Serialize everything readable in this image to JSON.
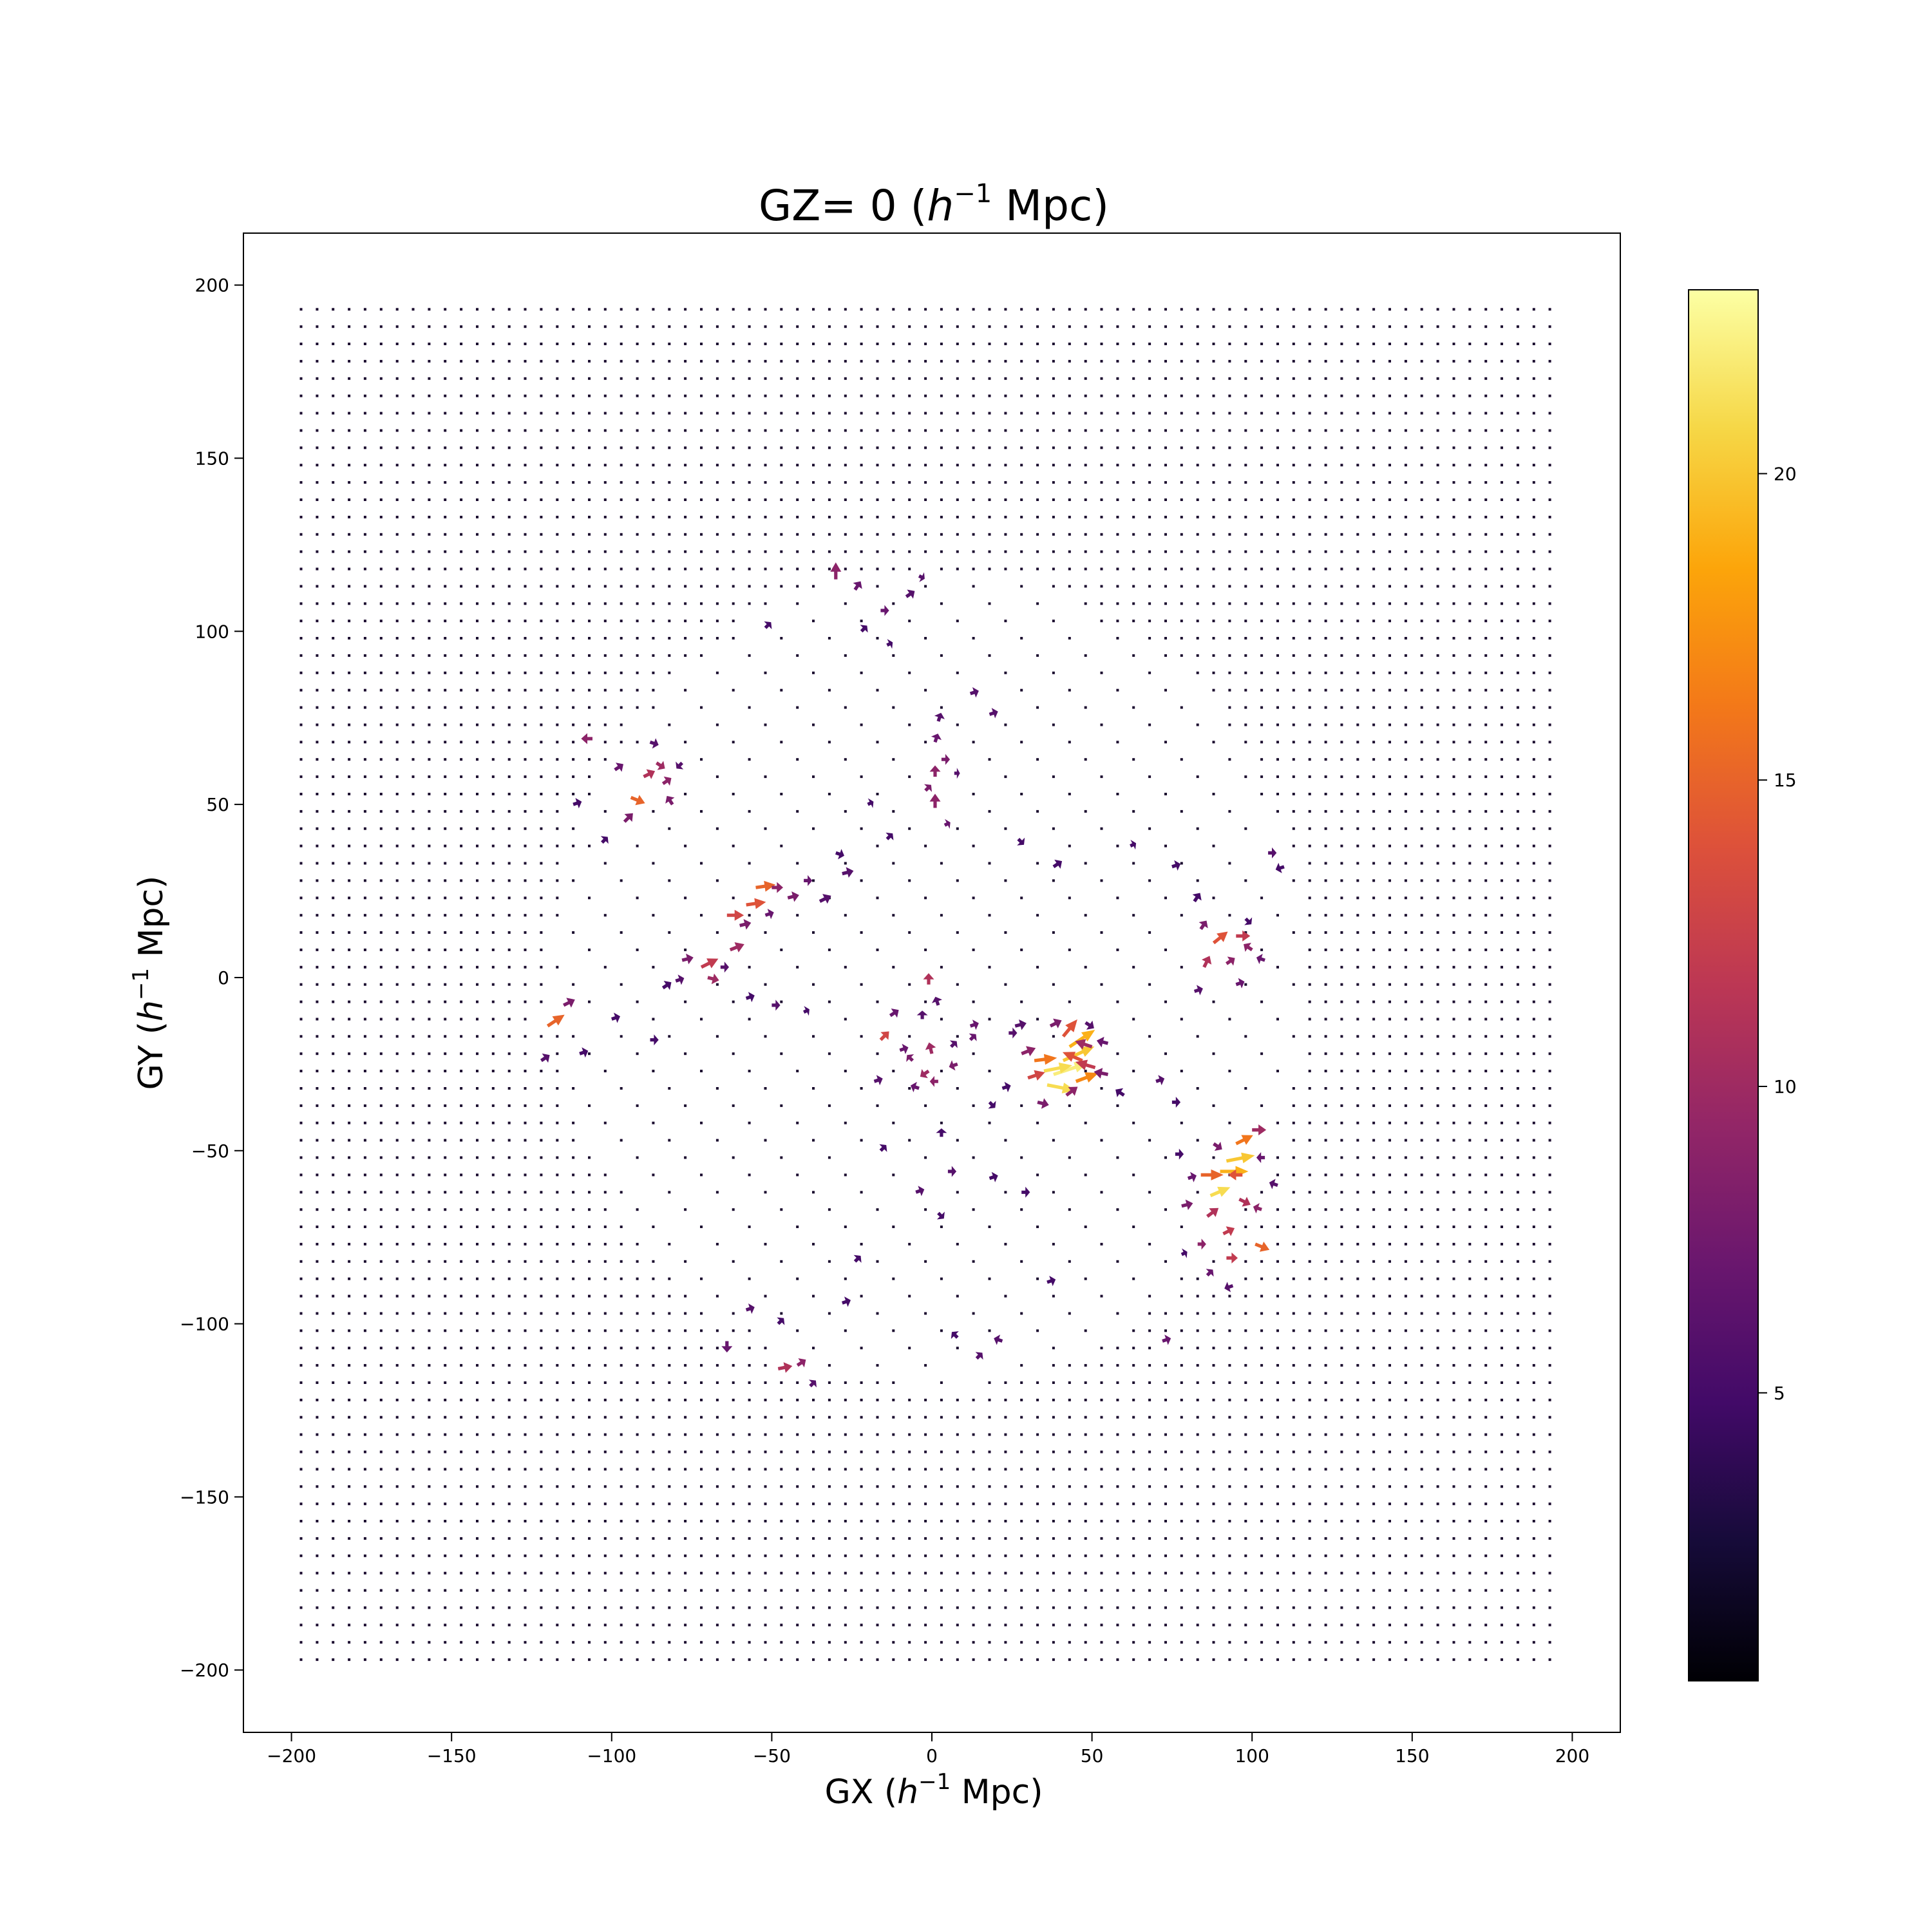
{
  "chart_data": {
    "type": "quiver",
    "title": "GZ= 0 ($h^{-1}$ Mpc)",
    "title_parts": {
      "prefix": "GZ= 0 (",
      "var": "h",
      "sup": "−1",
      "suffix": " Mpc)"
    },
    "xlabel": "GX ($h^{-1}$ Mpc)",
    "xlabel_parts": {
      "prefix": "GX (",
      "var": "h",
      "sup": "−1",
      "suffix": " Mpc)"
    },
    "ylabel": "GY ($h^{-1}$ Mpc)",
    "ylabel_parts": {
      "prefix": "GY (",
      "var": "h",
      "sup": "−1",
      "suffix": " Mpc)"
    },
    "xlim": [
      -215,
      215
    ],
    "ylim": [
      -218,
      215
    ],
    "xticks": [
      -200,
      -150,
      -100,
      -50,
      0,
      50,
      100,
      150,
      200
    ],
    "xtick_labels": [
      "−200",
      "−150",
      "−100",
      "−50",
      "0",
      "50",
      "100",
      "150",
      "200"
    ],
    "yticks": [
      -200,
      -150,
      -100,
      -50,
      0,
      50,
      100,
      150,
      200
    ],
    "ytick_labels": [
      "−200",
      "−150",
      "−100",
      "−50",
      "0",
      "50",
      "100",
      "150",
      "200"
    ],
    "grid": false,
    "grid_range": [
      -197,
      197
    ],
    "grid_spacing": 5,
    "colormap": "inferno",
    "colorbar": {
      "range": [
        0.3,
        23
      ],
      "ticks": [
        5,
        10,
        15,
        20
      ],
      "tick_labels": [
        "5",
        "10",
        "15",
        "20"
      ]
    },
    "vectors": [
      {
        "x": 38,
        "y": -28,
        "u": 12,
        "v": 4,
        "mag": 22
      },
      {
        "x": 35,
        "y": -27,
        "u": 10,
        "v": 2,
        "mag": 21
      },
      {
        "x": 41,
        "y": -24,
        "u": 11,
        "v": 5,
        "mag": 20
      },
      {
        "x": 43,
        "y": -20,
        "u": 9,
        "v": 6,
        "mag": 19
      },
      {
        "x": 36,
        "y": -31,
        "u": 10,
        "v": -2,
        "mag": 21
      },
      {
        "x": 45,
        "y": -30,
        "u": 8,
        "v": 3,
        "mag": 17
      },
      {
        "x": 32,
        "y": -24,
        "u": 8,
        "v": 1,
        "mag": 16
      },
      {
        "x": 47,
        "y": -24,
        "u": -7,
        "v": 3,
        "mag": 14
      },
      {
        "x": 51,
        "y": -26,
        "u": -7,
        "v": 2,
        "mag": 12
      },
      {
        "x": 41,
        "y": -17,
        "u": 5,
        "v": 6,
        "mag": 14
      },
      {
        "x": 30,
        "y": -29,
        "u": 6,
        "v": 2,
        "mag": 13
      },
      {
        "x": 50,
        "y": -20,
        "u": -6,
        "v": 2,
        "mag": 10
      },
      {
        "x": 42,
        "y": -34,
        "u": 4,
        "v": 3,
        "mag": 9
      },
      {
        "x": 28,
        "y": -22,
        "u": 5,
        "v": 2,
        "mag": 9
      },
      {
        "x": 33,
        "y": -36,
        "u": 4,
        "v": -1,
        "mag": 8
      },
      {
        "x": 55,
        "y": -28,
        "u": -5,
        "v": 1,
        "mag": 8
      },
      {
        "x": 37,
        "y": -14,
        "u": 4,
        "v": 2,
        "mag": 8
      },
      {
        "x": 55,
        "y": -19,
        "u": -4,
        "v": 1,
        "mag": 7
      },
      {
        "x": 26,
        "y": -14,
        "u": 4,
        "v": 1,
        "mag": 6
      },
      {
        "x": 48,
        "y": -13,
        "u": 3,
        "v": -2,
        "mag": 6
      },
      {
        "x": 60,
        "y": -34,
        "u": -3,
        "v": 2,
        "mag": 5
      },
      {
        "x": 22,
        "y": -32,
        "u": 3,
        "v": 1,
        "mag": 5
      },
      {
        "x": 92,
        "y": -53,
        "u": 10,
        "v": 2,
        "mag": 20
      },
      {
        "x": 90,
        "y": -56,
        "u": 10,
        "v": 0,
        "mag": 19
      },
      {
        "x": 87,
        "y": -63,
        "u": 7,
        "v": 3,
        "mag": 21
      },
      {
        "x": 95,
        "y": -48,
        "u": 6,
        "v": 3,
        "mag": 16
      },
      {
        "x": 84,
        "y": -57,
        "u": 8,
        "v": 0,
        "mag": 15
      },
      {
        "x": 97,
        "y": -57,
        "u": -5,
        "v": 0,
        "mag": 14
      },
      {
        "x": 101,
        "y": -77,
        "u": 5,
        "v": -2,
        "mag": 15
      },
      {
        "x": 91,
        "y": -74,
        "u": 4,
        "v": 2,
        "mag": 12
      },
      {
        "x": 86,
        "y": -69,
        "u": 4,
        "v": 3,
        "mag": 11
      },
      {
        "x": 96,
        "y": -64,
        "u": 4,
        "v": -2,
        "mag": 11
      },
      {
        "x": 100,
        "y": -44,
        "u": 5,
        "v": 0,
        "mag": 10
      },
      {
        "x": 92,
        "y": -81,
        "u": 4,
        "v": 0,
        "mag": 12
      },
      {
        "x": 83,
        "y": -77,
        "u": 3,
        "v": 0,
        "mag": 9
      },
      {
        "x": 103,
        "y": -67,
        "u": -3,
        "v": 1,
        "mag": 9
      },
      {
        "x": 78,
        "y": -66,
        "u": 4,
        "v": 1,
        "mag": 8
      },
      {
        "x": 80,
        "y": -58,
        "u": 3,
        "v": 1,
        "mag": 7
      },
      {
        "x": 88,
        "y": -48,
        "u": 3,
        "v": -2,
        "mag": 8
      },
      {
        "x": 104,
        "y": -52,
        "u": -3,
        "v": 0,
        "mag": 7
      },
      {
        "x": 86,
        "y": -86,
        "u": 2,
        "v": 2,
        "mag": 7
      },
      {
        "x": 94,
        "y": -89,
        "u": -3,
        "v": -1,
        "mag": 6
      },
      {
        "x": 78,
        "y": -80,
        "u": 2,
        "v": 1,
        "mag": 5
      },
      {
        "x": 108,
        "y": -60,
        "u": -3,
        "v": 1,
        "mag": 6
      },
      {
        "x": 76,
        "y": -51,
        "u": 3,
        "v": 0,
        "mag": 5
      },
      {
        "x": 88,
        "y": 10,
        "u": 5,
        "v": 4,
        "mag": 14
      },
      {
        "x": 95,
        "y": 12,
        "u": 5,
        "v": 0,
        "mag": 12
      },
      {
        "x": 85,
        "y": 3,
        "u": 2,
        "v": 4,
        "mag": 11
      },
      {
        "x": 100,
        "y": 8,
        "u": -3,
        "v": 2,
        "mag": 9
      },
      {
        "x": 92,
        "y": 4,
        "u": 3,
        "v": 2,
        "mag": 9
      },
      {
        "x": 84,
        "y": 14,
        "u": 2,
        "v": 3,
        "mag": 8
      },
      {
        "x": 104,
        "y": 5,
        "u": -3,
        "v": 1,
        "mag": 7
      },
      {
        "x": 95,
        "y": -2,
        "u": 3,
        "v": 1,
        "mag": 7
      },
      {
        "x": 82,
        "y": -4,
        "u": 3,
        "v": 1,
        "mag": 6
      },
      {
        "x": 98,
        "y": 17,
        "u": 2,
        "v": -2,
        "mag": 5
      },
      {
        "x": -55,
        "y": 26,
        "u": 7,
        "v": 1,
        "mag": 15
      },
      {
        "x": -58,
        "y": 21,
        "u": 7,
        "v": 1,
        "mag": 14
      },
      {
        "x": -64,
        "y": 18,
        "u": 6,
        "v": 0,
        "mag": 13
      },
      {
        "x": -72,
        "y": 3,
        "u": 6,
        "v": 3,
        "mag": 12
      },
      {
        "x": -63,
        "y": 8,
        "u": 5,
        "v": 2,
        "mag": 10
      },
      {
        "x": -70,
        "y": 0,
        "u": 4,
        "v": -1,
        "mag": 10
      },
      {
        "x": -50,
        "y": 26,
        "u": 4,
        "v": 0,
        "mag": 9
      },
      {
        "x": -60,
        "y": 15,
        "u": 4,
        "v": 1,
        "mag": 8
      },
      {
        "x": -45,
        "y": 23,
        "u": 4,
        "v": 1,
        "mag": 8
      },
      {
        "x": -78,
        "y": 5,
        "u": 4,
        "v": 1,
        "mag": 8
      },
      {
        "x": -52,
        "y": 18,
        "u": 3,
        "v": 1,
        "mag": 7
      },
      {
        "x": -40,
        "y": 28,
        "u": 3,
        "v": 0,
        "mag": 7
      },
      {
        "x": -35,
        "y": 22,
        "u": 4,
        "v": 2,
        "mag": 6
      },
      {
        "x": -28,
        "y": 30,
        "u": 4,
        "v": 1,
        "mag": 6
      },
      {
        "x": -66,
        "y": 3,
        "u": 3,
        "v": 0,
        "mag": 6
      },
      {
        "x": -80,
        "y": -1,
        "u": 3,
        "v": 1,
        "mag": 6
      },
      {
        "x": -84,
        "y": -3,
        "u": 3,
        "v": 2,
        "mag": 5
      },
      {
        "x": -30,
        "y": 36,
        "u": 3,
        "v": -1,
        "mag": 5
      },
      {
        "x": -120,
        "y": -14,
        "u": 6,
        "v": 4,
        "mag": 15
      },
      {
        "x": -115,
        "y": -8,
        "u": 4,
        "v": 2,
        "mag": 8
      },
      {
        "x": -122,
        "y": -24,
        "u": 3,
        "v": 2,
        "mag": 6
      },
      {
        "x": -110,
        "y": -22,
        "u": 3,
        "v": 1,
        "mag": 5
      },
      {
        "x": -94,
        "y": 52,
        "u": 5,
        "v": -2,
        "mag": 15
      },
      {
        "x": -90,
        "y": 58,
        "u": 4,
        "v": 2,
        "mag": 11
      },
      {
        "x": -86,
        "y": 62,
        "u": 3,
        "v": -2,
        "mag": 10
      },
      {
        "x": -84,
        "y": 56,
        "u": 3,
        "v": 2,
        "mag": 9
      },
      {
        "x": -81,
        "y": 50,
        "u": -2,
        "v": 3,
        "mag": 8
      },
      {
        "x": -96,
        "y": 45,
        "u": 3,
        "v": 3,
        "mag": 8
      },
      {
        "x": -106,
        "y": 69,
        "u": -4,
        "v": 0,
        "mag": 9
      },
      {
        "x": -99,
        "y": 60,
        "u": 3,
        "v": 2,
        "mag": 7
      },
      {
        "x": -88,
        "y": 68,
        "u": 3,
        "v": -1,
        "mag": 6
      },
      {
        "x": -78,
        "y": 62,
        "u": -2,
        "v": -2,
        "mag": 6
      },
      {
        "x": -112,
        "y": 50,
        "u": 3,
        "v": 1,
        "mag": 5
      },
      {
        "x": -103,
        "y": 39,
        "u": 2,
        "v": 2,
        "mag": 5
      },
      {
        "x": -30,
        "y": 115,
        "u": 0,
        "v": 6,
        "mag": 9
      },
      {
        "x": -24,
        "y": 112,
        "u": 2,
        "v": 3,
        "mag": 7
      },
      {
        "x": -16,
        "y": 106,
        "u": 3,
        "v": 0,
        "mag": 7
      },
      {
        "x": -8,
        "y": 110,
        "u": 3,
        "v": 2,
        "mag": 6
      },
      {
        "x": -4,
        "y": 116,
        "u": 2,
        "v": -1,
        "mag": 6
      },
      {
        "x": -22,
        "y": 100,
        "u": 2,
        "v": 2,
        "mag": 5
      },
      {
        "x": -52,
        "y": 101,
        "u": 2,
        "v": 2,
        "mag": 5
      },
      {
        "x": -14,
        "y": 96,
        "u": 2,
        "v": 1,
        "mag": 5
      },
      {
        "x": 1,
        "y": 49,
        "u": 0,
        "v": 5,
        "mag": 9
      },
      {
        "x": 1,
        "y": 58,
        "u": 0,
        "v": 4,
        "mag": 9
      },
      {
        "x": 3,
        "y": 63,
        "u": 3,
        "v": 0,
        "mag": 8
      },
      {
        "x": -2,
        "y": 54,
        "u": 2,
        "v": 2,
        "mag": 8
      },
      {
        "x": 1,
        "y": 68,
        "u": 1,
        "v": 3,
        "mag": 7
      },
      {
        "x": 4,
        "y": 44,
        "u": 2,
        "v": 1,
        "mag": 7
      },
      {
        "x": 7,
        "y": 59,
        "u": 2,
        "v": 0,
        "mag": 6
      },
      {
        "x": 12,
        "y": 82,
        "u": 3,
        "v": 1,
        "mag": 6
      },
      {
        "x": 18,
        "y": 76,
        "u": 3,
        "v": 1,
        "mag": 6
      },
      {
        "x": 2,
        "y": 74,
        "u": 1,
        "v": 3,
        "mag": 6
      },
      {
        "x": -1,
        "y": -2,
        "u": 0,
        "v": 4,
        "mag": 11
      },
      {
        "x": 0,
        "y": -22,
        "u": -1,
        "v": 4,
        "mag": 10
      },
      {
        "x": -1,
        "y": -27,
        "u": -3,
        "v": -2,
        "mag": 10
      },
      {
        "x": 2,
        "y": -30,
        "u": -3,
        "v": 0,
        "mag": 9
      },
      {
        "x": -16,
        "y": -18,
        "u": 3,
        "v": 3,
        "mag": 13
      },
      {
        "x": -6,
        "y": -24,
        "u": -2,
        "v": 2,
        "mag": 8
      },
      {
        "x": -13,
        "y": -11,
        "u": 3,
        "v": 2,
        "mag": 7
      },
      {
        "x": 8,
        "y": -25,
        "u": -3,
        "v": -1,
        "mag": 8
      },
      {
        "x": 12,
        "y": -18,
        "u": 2,
        "v": 2,
        "mag": 7
      },
      {
        "x": 12,
        "y": -14,
        "u": 3,
        "v": 1,
        "mag": 7
      },
      {
        "x": -10,
        "y": -21,
        "u": 3,
        "v": 1,
        "mag": 7
      },
      {
        "x": 6,
        "y": -20,
        "u": 2,
        "v": 2,
        "mag": 6
      },
      {
        "x": 2,
        "y": -8,
        "u": -1,
        "v": 3,
        "mag": 6
      },
      {
        "x": -3,
        "y": -12,
        "u": 0,
        "v": 3,
        "mag": 6
      },
      {
        "x": -4,
        "y": -32,
        "u": -3,
        "v": 1,
        "mag": 7
      },
      {
        "x": -18,
        "y": -30,
        "u": 3,
        "v": 1,
        "mag": 6
      },
      {
        "x": 18,
        "y": -36,
        "u": 2,
        "v": -2,
        "mag": 5
      },
      {
        "x": 24,
        "y": -16,
        "u": 3,
        "v": 0,
        "mag": 6
      },
      {
        "x": 38,
        "y": 32,
        "u": 3,
        "v": 2,
        "mag": 5
      },
      {
        "x": 27,
        "y": 40,
        "u": 2,
        "v": -2,
        "mag": 5
      },
      {
        "x": 75,
        "y": 32,
        "u": 3,
        "v": 1,
        "mag": 5
      },
      {
        "x": 82,
        "y": 22,
        "u": 2,
        "v": 3,
        "mag": 5
      },
      {
        "x": 105,
        "y": 36,
        "u": 3,
        "v": 0,
        "mag": 6
      },
      {
        "x": 110,
        "y": 32,
        "u": -3,
        "v": -1,
        "mag": 5
      },
      {
        "x": 62,
        "y": 38,
        "u": 2,
        "v": 1,
        "mag": 5
      },
      {
        "x": -48,
        "y": -113,
        "u": 5,
        "v": 1,
        "mag": 11
      },
      {
        "x": -42,
        "y": -112,
        "u": 3,
        "v": 2,
        "mag": 9
      },
      {
        "x": -64,
        "y": -105,
        "u": 0,
        "v": -4,
        "mag": 7
      },
      {
        "x": -58,
        "y": -96,
        "u": 3,
        "v": 1,
        "mag": 6
      },
      {
        "x": -38,
        "y": -118,
        "u": 2,
        "v": 2,
        "mag": 6
      },
      {
        "x": -48,
        "y": -100,
        "u": 2,
        "v": 2,
        "mag": 5
      },
      {
        "x": -28,
        "y": -94,
        "u": 3,
        "v": 1,
        "mag": 5
      },
      {
        "x": 72,
        "y": -105,
        "u": 3,
        "v": 1,
        "mag": 7
      },
      {
        "x": 22,
        "y": -105,
        "u": -3,
        "v": 1,
        "mag": 6
      },
      {
        "x": 14,
        "y": -110,
        "u": 2,
        "v": 2,
        "mag": 6
      },
      {
        "x": 8,
        "y": -104,
        "u": -2,
        "v": 2,
        "mag": 5
      },
      {
        "x": 36,
        "y": -88,
        "u": 3,
        "v": 1,
        "mag": 5
      },
      {
        "x": 5,
        "y": -56,
        "u": 3,
        "v": 0,
        "mag": 6
      },
      {
        "x": -5,
        "y": -62,
        "u": 3,
        "v": 1,
        "mag": 6
      },
      {
        "x": 18,
        "y": -58,
        "u": 3,
        "v": 1,
        "mag": 5
      },
      {
        "x": 28,
        "y": -62,
        "u": 3,
        "v": 0,
        "mag": 5
      },
      {
        "x": -16,
        "y": -50,
        "u": 2,
        "v": 2,
        "mag": 5
      },
      {
        "x": 3,
        "y": -46,
        "u": 0,
        "v": 3,
        "mag": 5
      },
      {
        "x": 2,
        "y": -68,
        "u": 2,
        "v": -2,
        "mag": 5
      },
      {
        "x": -24,
        "y": -82,
        "u": 2,
        "v": 2,
        "mag": 5
      },
      {
        "x": -100,
        "y": -12,
        "u": 3,
        "v": 1,
        "mag": 5
      },
      {
        "x": -88,
        "y": -18,
        "u": 3,
        "v": 0,
        "mag": 5
      },
      {
        "x": -58,
        "y": -6,
        "u": 3,
        "v": 1,
        "mag": 5
      },
      {
        "x": -50,
        "y": -8,
        "u": 3,
        "v": 0,
        "mag": 6
      },
      {
        "x": -40,
        "y": -10,
        "u": 2,
        "v": 1,
        "mag": 5
      },
      {
        "x": 70,
        "y": -30,
        "u": 3,
        "v": 1,
        "mag": 6
      },
      {
        "x": 75,
        "y": -36,
        "u": 3,
        "v": 0,
        "mag": 5
      },
      {
        "x": -14,
        "y": 40,
        "u": 2,
        "v": 2,
        "mag": 5
      },
      {
        "x": -20,
        "y": 50,
        "u": 2,
        "v": 1,
        "mag": 5
      }
    ]
  }
}
